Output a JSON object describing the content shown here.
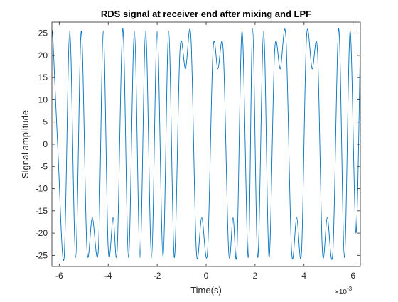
{
  "chart_data": {
    "type": "line",
    "title": "RDS signal at receiver end after mixing and LPF",
    "xlabel": "Time(s)",
    "ylabel": "Signal amplitude",
    "x_exponent_label": "×10",
    "x_exponent_power": "-3",
    "xlim": [
      -6.3,
      6.3
    ],
    "ylim": [
      -27.5,
      27.5
    ],
    "xticks": [
      -6,
      -4,
      -2,
      0,
      2,
      4,
      6
    ],
    "xtick_labels": [
      "-6",
      "-4",
      "-2",
      "0",
      "2",
      "4",
      "6"
    ],
    "yticks": [
      -25,
      -20,
      -15,
      -10,
      -5,
      0,
      5,
      10,
      15,
      20,
      25
    ],
    "ytick_labels": [
      "-25",
      "-20",
      "-15",
      "-10",
      "-5",
      "0",
      "5",
      "10",
      "15",
      "20",
      "25"
    ],
    "grid": false,
    "line_color": "#0072BD",
    "series": [
      {
        "name": "",
        "x": [
          -6.3,
          -6.26,
          -6.05,
          -5.8,
          -5.57,
          -5.33,
          -5.1,
          -4.87,
          -4.65,
          -4.4,
          -4.2,
          -4.0,
          -3.8,
          -3.63,
          -3.4,
          -3.17,
          -2.93,
          -2.7,
          -2.47,
          -2.23,
          -2.0,
          -1.76,
          -1.53,
          -1.3,
          -1.07,
          -0.84,
          -0.62,
          -0.4,
          -0.18,
          0.06,
          0.28,
          0.48,
          0.7,
          0.92,
          1.1,
          1.26,
          1.47,
          1.72,
          1.9,
          2.11,
          2.35,
          2.57,
          2.8,
          3.03,
          3.26,
          3.49,
          3.7,
          3.9,
          4.1,
          4.33,
          4.55,
          4.75,
          4.95,
          5.18,
          5.42,
          5.65,
          5.88,
          6.12,
          6.3
        ],
        "y": [
          23,
          24,
          -2,
          -25.5,
          25.5,
          -25.5,
          25.5,
          -23.5,
          -16.5,
          -23.5,
          25.5,
          -23.5,
          -16.5,
          -23.5,
          26,
          -25.5,
          25.5,
          -25.5,
          25.5,
          -25.5,
          25.5,
          -25.5,
          25.5,
          -25.5,
          21,
          17,
          24,
          -24,
          -16.5,
          -24,
          21,
          17,
          21,
          -24,
          -16.5,
          -24,
          25.5,
          -25.5,
          26,
          -25.5,
          25.5,
          -25.5,
          21,
          17,
          24,
          -24,
          -16.5,
          -24,
          24,
          17,
          21,
          -24,
          -16.5,
          -24,
          26,
          -25.5,
          25.5,
          -20,
          23
        ]
      }
    ]
  }
}
